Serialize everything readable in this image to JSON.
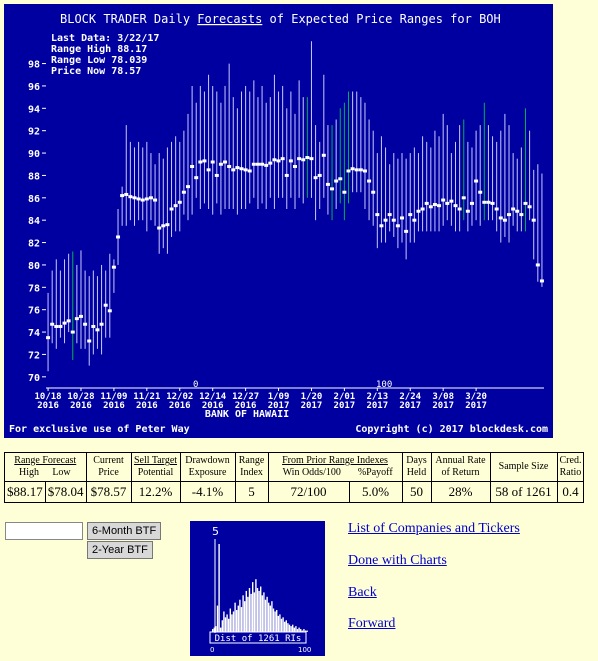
{
  "chart": {
    "title_prefix": "BLOCK TRADER Daily",
    "title_word": "Forecasts",
    "title_suffix": "of Expected Price Ranges for",
    "ticker": "BOH",
    "info": [
      "Last Data: 3/22/17",
      "Range High 88.17",
      "Range Low  78.039",
      "Price Now  78.57"
    ],
    "company": "BANK OF HAWAII",
    "footer_left": "For exclusive use of Peter Way",
    "footer_right": "Copyright (c) 2017 blockdesk.com",
    "marker_zero": "0",
    "marker_hundred": "100"
  },
  "chart_data": {
    "type": "range",
    "ylim": [
      69,
      101
    ],
    "y_ticks": [
      70,
      72,
      74,
      76,
      78,
      80,
      82,
      84,
      86,
      88,
      90,
      92,
      94,
      96,
      98
    ],
    "x_tick_labels": [
      [
        "10/18",
        "2016"
      ],
      [
        "10/28",
        "2016"
      ],
      [
        "11/09",
        "2016"
      ],
      [
        "11/21",
        "2016"
      ],
      [
        "12/02",
        "2016"
      ],
      [
        "12/14",
        "2016"
      ],
      [
        "12/27",
        "2016"
      ],
      [
        "1/09",
        "2017"
      ],
      [
        "1/20",
        "2017"
      ],
      [
        "2/01",
        "2017"
      ],
      [
        "2/13",
        "2017"
      ],
      [
        "2/24",
        "2017"
      ],
      [
        "3/08",
        "2017"
      ],
      [
        "3/20",
        "2017"
      ]
    ],
    "x_tick_index": [
      0,
      8,
      16,
      24,
      32,
      40,
      48,
      56,
      64,
      72,
      80,
      88,
      96,
      104
    ],
    "series": [
      {
        "high": 77.5,
        "low": 70.5,
        "price": 73.5
      },
      {
        "high": 79.5,
        "low": 73.0,
        "price": 74.7
      },
      {
        "high": 80.5,
        "low": 72.5,
        "price": 74.5
      },
      {
        "high": 79.5,
        "low": 73.5,
        "price": 74.5
      },
      {
        "high": 80.5,
        "low": 73.0,
        "price": 74.8
      },
      {
        "high": 81.0,
        "low": 74.0,
        "price": 75.0
      },
      {
        "high": 81.2,
        "low": 71.5,
        "price": 74.0
      },
      {
        "high": 80.0,
        "low": 73.0,
        "price": 75.2
      },
      {
        "high": 81.3,
        "low": 72.5,
        "price": 75.4
      },
      {
        "high": 79.5,
        "low": 72.5,
        "price": 74.7
      },
      {
        "high": 79.0,
        "low": 71.0,
        "price": 73.2
      },
      {
        "high": 79.5,
        "low": 72.0,
        "price": 74.5
      },
      {
        "high": 79.0,
        "low": 72.5,
        "price": 74.2
      },
      {
        "high": 80.0,
        "low": 72.0,
        "price": 74.7
      },
      {
        "high": 79.5,
        "low": 73.5,
        "price": 76.4
      },
      {
        "high": 81.0,
        "low": 73.5,
        "price": 75.9
      },
      {
        "high": 80.5,
        "low": 77.5,
        "price": 79.8
      },
      {
        "high": 85.0,
        "low": 80.0,
        "price": 82.5
      },
      {
        "high": 87.0,
        "low": 83.5,
        "price": 86.2
      },
      {
        "high": 92.5,
        "low": 83.5,
        "price": 86.3
      },
      {
        "high": 91.0,
        "low": 84.0,
        "price": 86.1
      },
      {
        "high": 90.5,
        "low": 83.5,
        "price": 86.0
      },
      {
        "high": 91.0,
        "low": 84.0,
        "price": 85.9
      },
      {
        "high": 90.5,
        "low": 84.0,
        "price": 85.8
      },
      {
        "high": 91.0,
        "low": 83.0,
        "price": 85.9
      },
      {
        "high": 90.0,
        "low": 84.0,
        "price": 86.0
      },
      {
        "high": 89.0,
        "low": 83.5,
        "price": 85.8
      },
      {
        "high": 90.0,
        "low": 81.0,
        "price": 83.3
      },
      {
        "high": 89.5,
        "low": 81.5,
        "price": 83.5
      },
      {
        "high": 90.5,
        "low": 81.0,
        "price": 83.6
      },
      {
        "high": 91.0,
        "low": 82.5,
        "price": 85.0
      },
      {
        "high": 91.5,
        "low": 83.0,
        "price": 85.3
      },
      {
        "high": 91.0,
        "low": 83.0,
        "price": 85.6
      },
      {
        "high": 92.0,
        "low": 84.5,
        "price": 86.5
      },
      {
        "high": 93.5,
        "low": 84.0,
        "price": 87.0
      },
      {
        "high": 96.0,
        "low": 84.5,
        "price": 88.8
      },
      {
        "high": 94.5,
        "low": 86.0,
        "price": 87.8
      },
      {
        "high": 96.0,
        "low": 85.0,
        "price": 89.2
      },
      {
        "high": 95.5,
        "low": 85.5,
        "price": 89.3
      },
      {
        "high": 97.0,
        "low": 85.0,
        "price": 88.5
      },
      {
        "high": 96.0,
        "low": 84.5,
        "price": 89.2
      },
      {
        "high": 95.5,
        "low": 85.5,
        "price": 88.0
      },
      {
        "high": 94.5,
        "low": 84.5,
        "price": 89.0
      },
      {
        "high": 96.0,
        "low": 85.0,
        "price": 89.2
      },
      {
        "high": 98.0,
        "low": 85.0,
        "price": 88.8
      },
      {
        "high": 95.0,
        "low": 85.0,
        "price": 88.5
      },
      {
        "high": 94.0,
        "low": 84.5,
        "price": 88.7
      },
      {
        "high": 95.5,
        "low": 85.0,
        "price": 88.6
      },
      {
        "high": 96.0,
        "low": 85.0,
        "price": 88.5
      },
      {
        "high": 95.5,
        "low": 85.5,
        "price": 88.4
      },
      {
        "high": 96.5,
        "low": 86.0,
        "price": 89.0
      },
      {
        "high": 95.0,
        "low": 85.0,
        "price": 89.0
      },
      {
        "high": 96.0,
        "low": 85.5,
        "price": 89.0
      },
      {
        "high": 94.5,
        "low": 85.0,
        "price": 88.9
      },
      {
        "high": 95.0,
        "low": 86.0,
        "price": 89.1
      },
      {
        "high": 97.0,
        "low": 85.0,
        "price": 89.4
      },
      {
        "high": 95.5,
        "low": 86.0,
        "price": 89.3
      },
      {
        "high": 96.0,
        "low": 86.0,
        "price": 89.5
      },
      {
        "high": 94.0,
        "low": 85.0,
        "price": 88.0
      },
      {
        "high": 95.5,
        "low": 86.0,
        "price": 89.3
      },
      {
        "high": 93.5,
        "low": 85.0,
        "price": 88.8
      },
      {
        "high": 96.5,
        "low": 86.0,
        "price": 89.5
      },
      {
        "high": 95.0,
        "low": 85.5,
        "price": 89.4
      },
      {
        "high": 95.0,
        "low": 86.0,
        "price": 89.6
      },
      {
        "high": 100.0,
        "low": 86.0,
        "price": 89.5
      },
      {
        "high": 92.5,
        "low": 84.0,
        "price": 87.8
      },
      {
        "high": 91.0,
        "low": 85.0,
        "price": 88.0
      },
      {
        "high": 97.0,
        "low": 86.0,
        "price": 89.8
      },
      {
        "high": 92.5,
        "low": 84.5,
        "price": 87.2
      },
      {
        "high": 92.5,
        "low": 84.0,
        "price": 86.8
      },
      {
        "high": 93.0,
        "low": 85.0,
        "price": 87.5
      },
      {
        "high": 94.0,
        "low": 85.5,
        "price": 87.7
      },
      {
        "high": 94.5,
        "low": 84.0,
        "price": 86.5
      },
      {
        "high": 95.5,
        "low": 85.5,
        "price": 88.4
      },
      {
        "high": 95.5,
        "low": 86.5,
        "price": 88.6
      },
      {
        "high": 95.5,
        "low": 86.5,
        "price": 88.5
      },
      {
        "high": 95.0,
        "low": 86.5,
        "price": 88.5
      },
      {
        "high": 94.5,
        "low": 85.0,
        "price": 88.4
      },
      {
        "high": 93.0,
        "low": 84.0,
        "price": 87.5
      },
      {
        "high": 92.0,
        "low": 83.5,
        "price": 86.5
      },
      {
        "high": 90.0,
        "low": 81.5,
        "price": 84.5
      },
      {
        "high": 91.5,
        "low": 82.0,
        "price": 83.5
      },
      {
        "high": 90.5,
        "low": 82.0,
        "price": 84.0
      },
      {
        "high": 89.0,
        "low": 83.0,
        "price": 84.5
      },
      {
        "high": 90.0,
        "low": 82.5,
        "price": 84.0
      },
      {
        "high": 89.5,
        "low": 81.5,
        "price": 83.5
      },
      {
        "high": 90.0,
        "low": 82.0,
        "price": 84.2
      },
      {
        "high": 89.5,
        "low": 80.5,
        "price": 83.0
      },
      {
        "high": 90.0,
        "low": 82.0,
        "price": 84.5
      },
      {
        "high": 90.5,
        "low": 82.0,
        "price": 84.0
      },
      {
        "high": 90.0,
        "low": 83.0,
        "price": 84.8
      },
      {
        "high": 91.5,
        "low": 83.0,
        "price": 85.0
      },
      {
        "high": 91.0,
        "low": 83.0,
        "price": 85.5
      },
      {
        "high": 90.5,
        "low": 83.0,
        "price": 85.2
      },
      {
        "high": 92.0,
        "low": 83.0,
        "price": 85.4
      },
      {
        "high": 91.5,
        "low": 83.0,
        "price": 85.3
      },
      {
        "high": 93.5,
        "low": 83.5,
        "price": 85.8
      },
      {
        "high": 92.5,
        "low": 84.0,
        "price": 85.5
      },
      {
        "high": 90.0,
        "low": 83.5,
        "price": 85.7
      },
      {
        "high": 91.0,
        "low": 83.0,
        "price": 85.3
      },
      {
        "high": 92.5,
        "low": 83.0,
        "price": 85.0
      },
      {
        "high": 93.0,
        "low": 84.0,
        "price": 86.0
      },
      {
        "high": 91.0,
        "low": 83.0,
        "price": 84.8
      },
      {
        "high": 90.5,
        "low": 83.5,
        "price": 85.5
      },
      {
        "high": 92.0,
        "low": 84.0,
        "price": 87.5
      },
      {
        "high": 92.5,
        "low": 83.5,
        "price": 86.5
      },
      {
        "high": 94.5,
        "low": 84.0,
        "price": 85.6
      },
      {
        "high": 92.5,
        "low": 84.0,
        "price": 85.6
      },
      {
        "high": 91.5,
        "low": 84.0,
        "price": 85.5
      },
      {
        "high": 91.0,
        "low": 83.0,
        "price": 85.0
      },
      {
        "high": 92.0,
        "low": 82.0,
        "price": 84.2
      },
      {
        "high": 93.5,
        "low": 82.5,
        "price": 84.0
      },
      {
        "high": 92.5,
        "low": 82.0,
        "price": 84.5
      },
      {
        "high": 90.0,
        "low": 83.5,
        "price": 85.0
      },
      {
        "high": 89.5,
        "low": 83.0,
        "price": 84.8
      },
      {
        "high": 90.5,
        "low": 83.0,
        "price": 84.5
      },
      {
        "high": 94.0,
        "low": 83.0,
        "price": 85.5
      },
      {
        "high": 92.0,
        "low": 84.0,
        "price": 85.2
      },
      {
        "high": 88.5,
        "low": 80.5,
        "price": 84.0
      },
      {
        "high": 89.0,
        "low": 78.5,
        "price": 80.0
      },
      {
        "high": 88.17,
        "low": 78.039,
        "price": 78.57
      }
    ],
    "green_index": [
      6,
      63,
      69,
      71,
      72,
      73,
      101,
      106,
      116,
      121
    ],
    "colors": {
      "background": "#0000a0",
      "range": "#c8c8ff",
      "range_up": "#00b050",
      "price": "#ffffff"
    }
  },
  "stats": {
    "headers": {
      "range_forecast": "Range Forecast",
      "high": "High",
      "low": "Low",
      "current_price": [
        "Current",
        "Price"
      ],
      "sell_target": [
        "Sell Target",
        "Potential"
      ],
      "drawdown": [
        "Drawdown",
        "Exposure"
      ],
      "range_index": [
        "Range",
        "Index"
      ],
      "from_prior": "From Prior Range Indexes",
      "win_odds": "Win Odds/100",
      "payoff": "%Payoff",
      "days_held": [
        "Days",
        "Held"
      ],
      "annual_rate": [
        "Annual Rate",
        "of Return"
      ],
      "sample_size": "Sample Size",
      "cred_ratio": [
        "Cred.",
        "Ratio"
      ]
    },
    "values": {
      "high": "$88.17",
      "low": "$78.04",
      "current_price": "$78.57",
      "sell_target": "12.2%",
      "drawdown": "-4.1%",
      "range_index": "5",
      "win_odds": "72/100",
      "payoff": "5.0%",
      "days_held": "50",
      "annual_rate": "28%",
      "sample_size": "58 of 1261",
      "cred_ratio": "0.4"
    }
  },
  "controls": {
    "ticker_value": "",
    "six_month_button": "6-Month BTF",
    "two_year_button": "2-Year BTF"
  },
  "histogram": {
    "marker_value": "5",
    "caption": "Dist of 1261 RIs",
    "axis_min": "0",
    "axis_max": "100",
    "distribution": [
      2,
      3,
      4,
      18,
      60,
      3,
      8,
      14,
      10,
      12,
      9,
      16,
      12,
      14,
      20,
      15,
      18,
      22,
      17,
      25,
      21,
      28,
      24,
      30,
      26,
      34,
      27,
      36,
      30,
      28,
      31,
      25,
      27,
      22,
      24,
      20,
      18,
      21,
      16,
      14,
      15,
      11,
      12,
      9,
      10,
      7,
      8,
      6,
      5,
      4,
      5,
      3,
      4,
      2,
      3,
      2,
      1,
      2,
      1,
      1
    ]
  },
  "links": [
    "List of Companies and Tickers",
    "Done with Charts",
    "Back",
    "Forward"
  ]
}
